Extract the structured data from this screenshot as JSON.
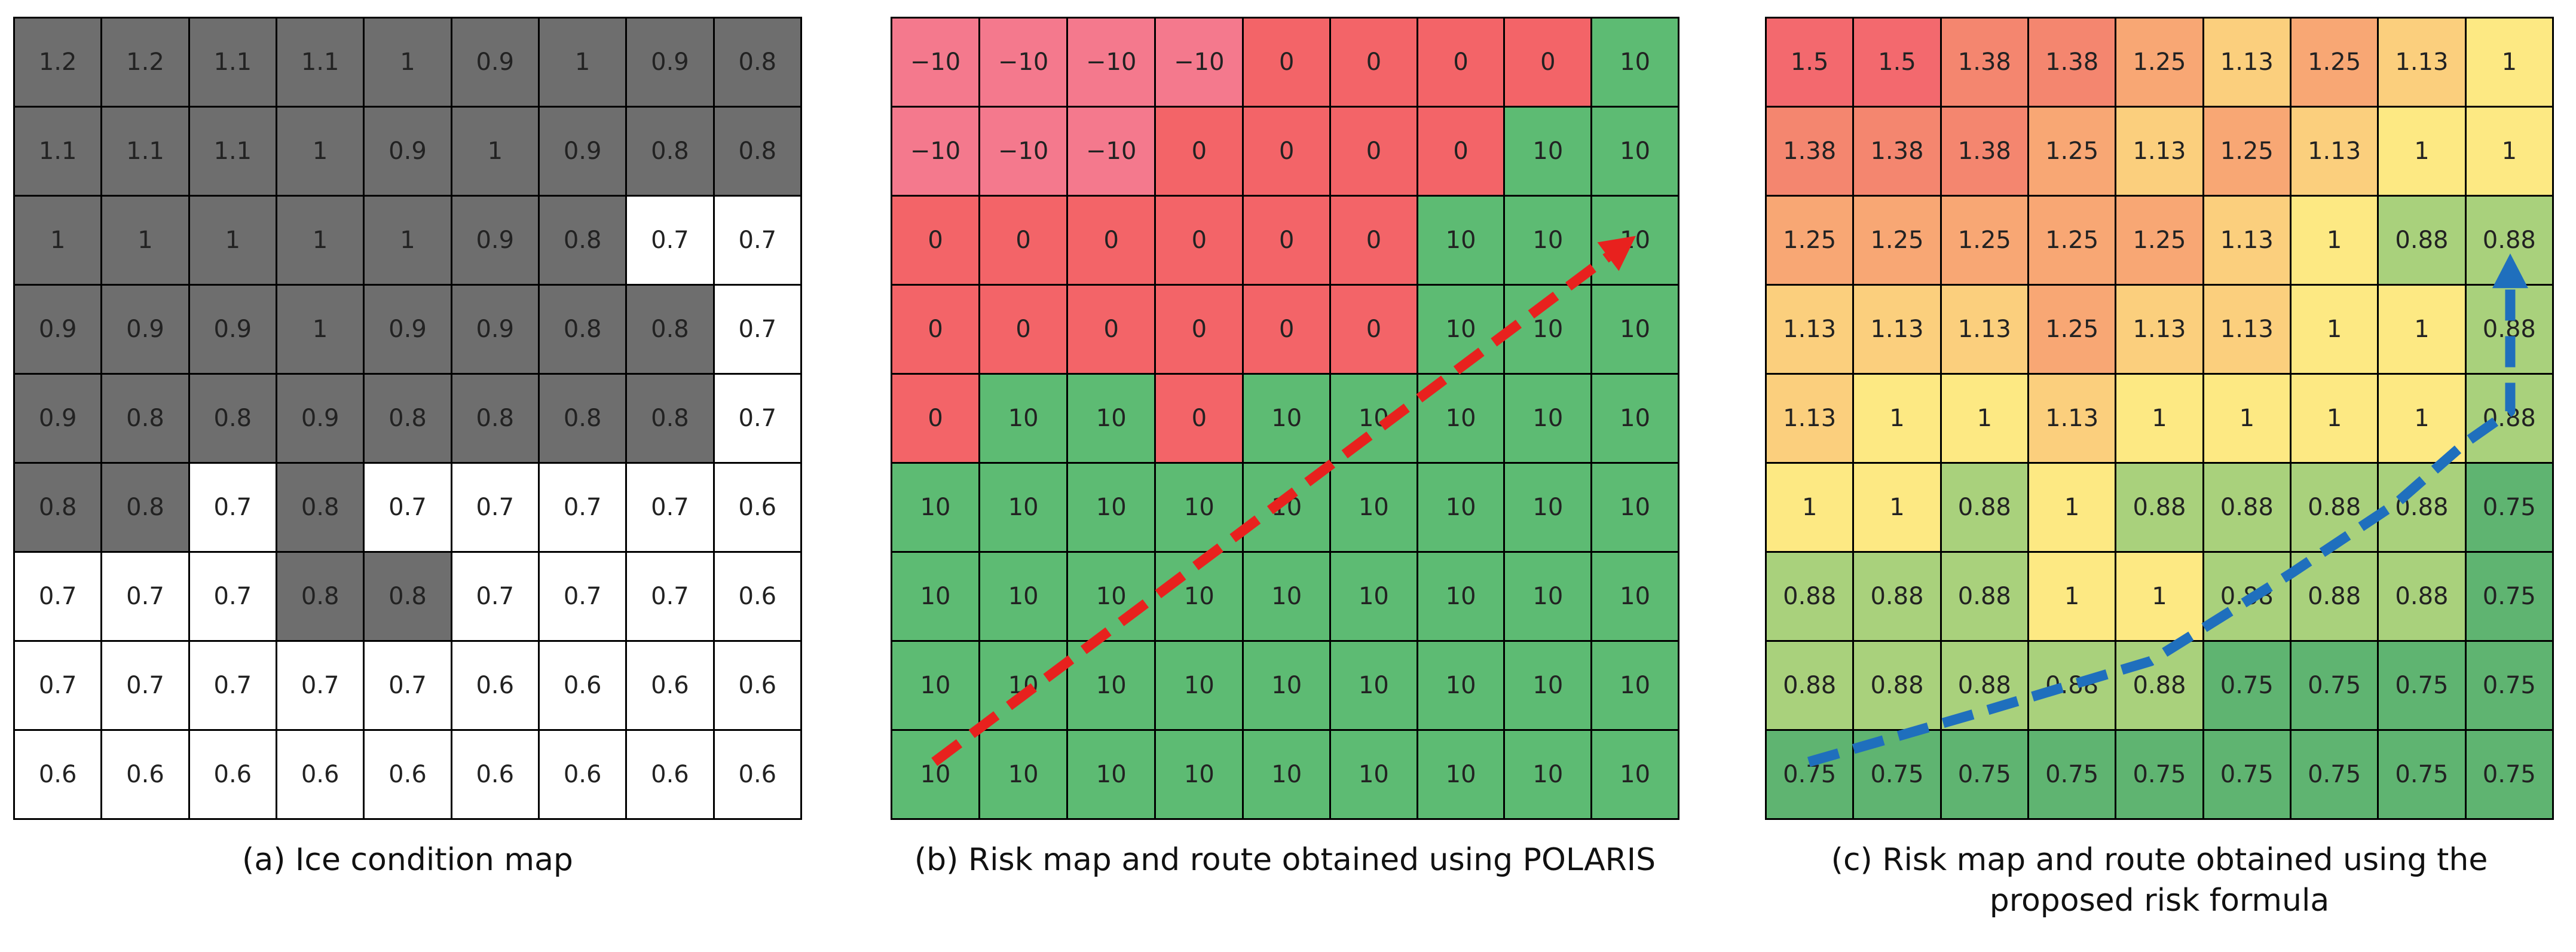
{
  "panels": [
    {
      "caption": "(a) Ice condition map",
      "color_mode": "ice",
      "colors": {
        "ice": "#6e6e6e",
        "open": "#ffffff"
      },
      "cells": [
        [
          "1.2",
          "1.2",
          "1.1",
          "1.1",
          "1",
          "0.9",
          "1",
          "0.9",
          "0.8"
        ],
        [
          "1.1",
          "1.1",
          "1.1",
          "1",
          "0.9",
          "1",
          "0.9",
          "0.8",
          "0.8"
        ],
        [
          "1",
          "1",
          "1",
          "1",
          "1",
          "0.9",
          "0.8",
          "0.7",
          "0.7"
        ],
        [
          "0.9",
          "0.9",
          "0.9",
          "1",
          "0.9",
          "0.9",
          "0.8",
          "0.8",
          "0.7"
        ],
        [
          "0.9",
          "0.8",
          "0.8",
          "0.9",
          "0.8",
          "0.8",
          "0.8",
          "0.8",
          "0.7"
        ],
        [
          "0.8",
          "0.8",
          "0.7",
          "0.8",
          "0.7",
          "0.7",
          "0.7",
          "0.7",
          "0.6"
        ],
        [
          "0.7",
          "0.7",
          "0.7",
          "0.8",
          "0.8",
          "0.7",
          "0.7",
          "0.7",
          "0.6"
        ],
        [
          "0.7",
          "0.7",
          "0.7",
          "0.7",
          "0.7",
          "0.6",
          "0.6",
          "0.6",
          "0.6"
        ],
        [
          "0.6",
          "0.6",
          "0.6",
          "0.6",
          "0.6",
          "0.6",
          "0.6",
          "0.6",
          "0.6"
        ]
      ],
      "shaded": [
        [
          1,
          1,
          1,
          1,
          1,
          1,
          1,
          1,
          1
        ],
        [
          1,
          1,
          1,
          1,
          1,
          1,
          1,
          1,
          1
        ],
        [
          1,
          1,
          1,
          1,
          1,
          1,
          1,
          0,
          0
        ],
        [
          1,
          1,
          1,
          1,
          1,
          1,
          1,
          1,
          0
        ],
        [
          1,
          1,
          1,
          1,
          1,
          1,
          1,
          1,
          0
        ],
        [
          1,
          1,
          0,
          1,
          0,
          0,
          0,
          0,
          0
        ],
        [
          0,
          0,
          0,
          1,
          1,
          0,
          0,
          0,
          0
        ],
        [
          0,
          0,
          0,
          0,
          0,
          0,
          0,
          0,
          0
        ],
        [
          0,
          0,
          0,
          0,
          0,
          0,
          0,
          0,
          0
        ]
      ],
      "route": null
    },
    {
      "caption": "(b) Risk map and route obtained using POLARIS",
      "color_mode": "polaris",
      "colors": {
        "-10": "#f4798d",
        "0": "#f36468",
        "10": "#5dbb73"
      },
      "cells": [
        [
          "−10",
          "−10",
          "−10",
          "−10",
          "0",
          "0",
          "0",
          "0",
          "10"
        ],
        [
          "−10",
          "−10",
          "−10",
          "0",
          "0",
          "0",
          "0",
          "10",
          "10"
        ],
        [
          "0",
          "0",
          "0",
          "0",
          "0",
          "0",
          "10",
          "10",
          "10"
        ],
        [
          "0",
          "0",
          "0",
          "0",
          "0",
          "0",
          "10",
          "10",
          "10"
        ],
        [
          "0",
          "10",
          "10",
          "0",
          "10",
          "10",
          "10",
          "10",
          "10"
        ],
        [
          "10",
          "10",
          "10",
          "10",
          "10",
          "10",
          "10",
          "10",
          "10"
        ],
        [
          "10",
          "10",
          "10",
          "10",
          "10",
          "10",
          "10",
          "10",
          "10"
        ],
        [
          "10",
          "10",
          "10",
          "10",
          "10",
          "10",
          "10",
          "10",
          "10"
        ],
        [
          "10",
          "10",
          "10",
          "10",
          "10",
          "10",
          "10",
          "10",
          "10"
        ]
      ],
      "route": {
        "color": "#e8211e",
        "arrow": "tip",
        "points": [
          [
            0.5,
            8.5
          ],
          [
            8.5,
            2.5
          ]
        ]
      }
    },
    {
      "caption": "(c) Risk map and route obtained using the proposed risk formula",
      "caption_lines": [
        "(c) Risk map and route obtained using the",
        "proposed risk formula"
      ],
      "color_mode": "proposed",
      "colors": {
        "1.5": "#f3696e",
        "1.38": "#f4866f",
        "1.25": "#f8a774",
        "1.13": "#fbcf7d",
        "1": "#fde983",
        "0.88": "#a9d17c",
        "0.75": "#5fb471"
      },
      "cells": [
        [
          "1.5",
          "1.5",
          "1.38",
          "1.38",
          "1.25",
          "1.13",
          "1.25",
          "1.13",
          "1"
        ],
        [
          "1.38",
          "1.38",
          "1.38",
          "1.25",
          "1.13",
          "1.25",
          "1.13",
          "1",
          "1"
        ],
        [
          "1.25",
          "1.25",
          "1.25",
          "1.25",
          "1.25",
          "1.13",
          "1",
          "0.88",
          "0.88"
        ],
        [
          "1.13",
          "1.13",
          "1.13",
          "1.25",
          "1.13",
          "1.13",
          "1",
          "1",
          "0.88"
        ],
        [
          "1.13",
          "1",
          "1",
          "1.13",
          "1",
          "1",
          "1",
          "1",
          "0.88"
        ],
        [
          "1",
          "1",
          "0.88",
          "1",
          "0.88",
          "0.88",
          "0.88",
          "0.88",
          "0.75"
        ],
        [
          "0.88",
          "0.88",
          "0.88",
          "1",
          "1",
          "0.88",
          "0.88",
          "0.88",
          "0.75"
        ],
        [
          "0.88",
          "0.88",
          "0.88",
          "0.88",
          "0.88",
          "0.75",
          "0.75",
          "0.75",
          "0.75"
        ],
        [
          "0.75",
          "0.75",
          "0.75",
          "0.75",
          "0.75",
          "0.75",
          "0.75",
          "0.75",
          "0.75"
        ]
      ],
      "route": {
        "color": "#1f6fbd",
        "arrow": "tip",
        "points": [
          [
            0.5,
            8.5
          ],
          [
            2.4,
            7.95
          ],
          [
            3.9,
            7.5
          ],
          [
            4.4,
            7.35
          ],
          [
            6.0,
            6.35
          ],
          [
            7.2,
            5.55
          ],
          [
            8.0,
            4.85
          ],
          [
            8.5,
            4.5
          ],
          [
            8.5,
            2.7
          ]
        ]
      }
    }
  ]
}
